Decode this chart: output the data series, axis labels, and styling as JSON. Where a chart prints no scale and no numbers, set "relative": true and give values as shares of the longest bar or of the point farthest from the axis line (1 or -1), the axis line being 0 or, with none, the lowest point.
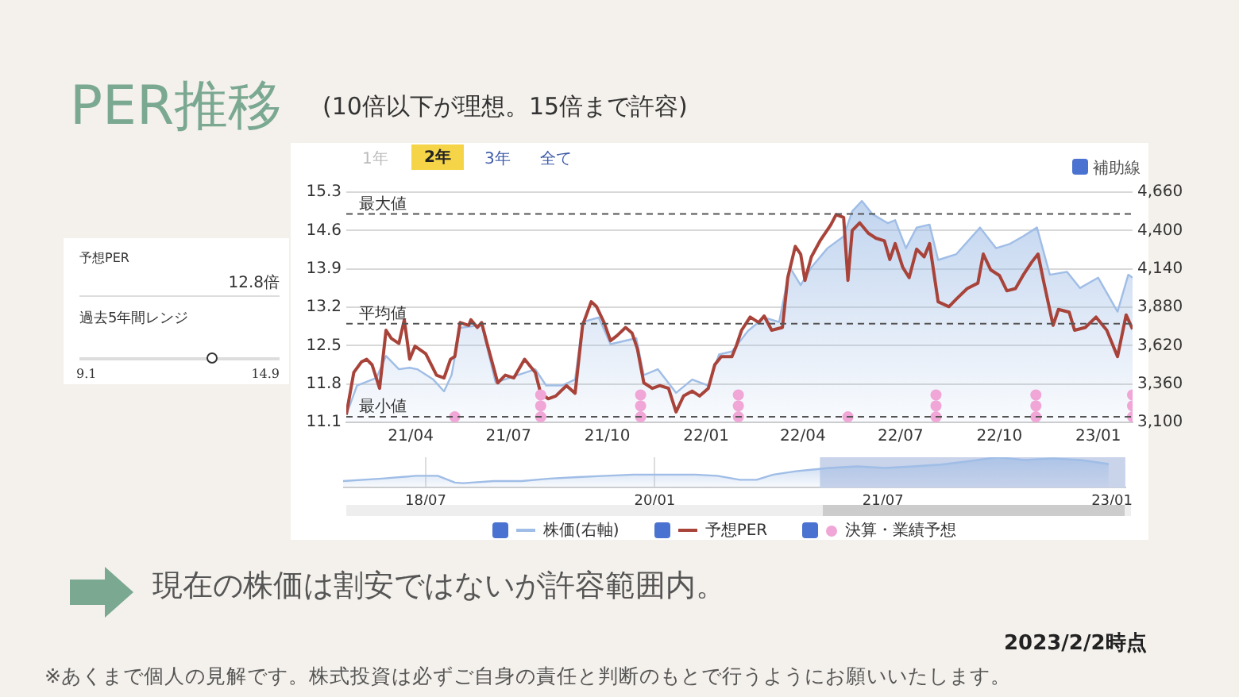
{
  "chart_data": [
    {
      "type": "line",
      "title": "PER推移",
      "subtitle": "(10倍以下が理想。15倍まで許容)",
      "annotations": [
        "1年",
        "2年",
        "3年",
        "全て",
        "補助線",
        "現在の株価は割安ではないが許容範囲内。",
        "2023/2/2時点",
        "※あくまで個人の見解です。株式投資は必ずご自身の責任と判断のもとで行うようにお願いいたします。"
      ],
      "xlim": [
        "2021-01-31",
        "2023-02-02"
      ],
      "xticks": [
        {
          "value": "2021-04-01",
          "label": "21/04"
        },
        {
          "value": "2021-07-01",
          "label": "21/07"
        },
        {
          "value": "2021-10-01",
          "label": "21/10"
        },
        {
          "value": "2022-01-01",
          "label": "22/01"
        },
        {
          "value": "2022-04-01",
          "label": "22/04"
        },
        {
          "value": "2022-07-01",
          "label": "22/07"
        },
        {
          "value": "2022-10-01",
          "label": "22/10"
        },
        {
          "value": "2023-01-01",
          "label": "23/01"
        }
      ],
      "ylim": [
        11.1,
        15.3
      ],
      "yticks": [
        11.1,
        11.8,
        12.5,
        13.2,
        13.9,
        14.6,
        15.3
      ],
      "y2lim": [
        3100,
        4660
      ],
      "y2ticks": [
        {
          "value": 3100,
          "label": "3,100"
        },
        {
          "value": 3360,
          "label": "3,360"
        },
        {
          "value": 3620,
          "label": "3,620"
        },
        {
          "value": 3880,
          "label": "3,880"
        },
        {
          "value": 4140,
          "label": "4,140"
        },
        {
          "value": 4400,
          "label": "4,400"
        },
        {
          "value": 4660,
          "label": "4,660"
        }
      ],
      "grid": "y",
      "legend": "bottom",
      "ref_lines": [
        {
          "axis": "y",
          "value": 14.9,
          "label": "最大値",
          "line_style": "dashed",
          "color": "#555555"
        },
        {
          "axis": "y",
          "value": 12.9,
          "label": "平均値",
          "line_style": "dashed",
          "color": "#555555"
        },
        {
          "axis": "y",
          "value": 11.2,
          "label": "最小値",
          "line_style": "dashed",
          "color": "#555555"
        }
      ],
      "series": [
        {
          "name": "株価(右軸)",
          "type": "area",
          "axis": "y2",
          "color": "#9fbde6",
          "x": [
            "2021-01-31",
            "2021-02-10",
            "2021-02-28",
            "2021-03-09",
            "2021-03-21",
            "2021-03-31",
            "2021-04-07",
            "2021-04-22",
            "2021-05-02",
            "2021-05-09",
            "2021-05-17",
            "2021-06-06",
            "2021-06-19",
            "2021-07-26",
            "2021-08-05",
            "2021-08-20",
            "2021-09-01",
            "2021-09-08",
            "2021-09-23",
            "2021-10-04",
            "2021-10-28",
            "2021-11-04",
            "2021-11-17",
            "2021-12-04",
            "2021-12-19",
            "2022-01-03",
            "2022-01-13",
            "2022-01-25",
            "2022-02-09",
            "2022-02-24",
            "2022-03-10",
            "2022-03-20",
            "2022-03-30",
            "2022-04-09",
            "2022-04-24",
            "2022-05-09",
            "2022-05-17",
            "2022-05-26",
            "2022-06-05",
            "2022-06-19",
            "2022-06-26",
            "2022-07-06",
            "2022-07-16",
            "2022-07-28",
            "2022-08-05",
            "2022-08-22",
            "2022-09-13",
            "2022-09-28",
            "2022-10-11",
            "2022-10-23",
            "2022-11-05",
            "2022-11-17",
            "2022-12-03",
            "2022-12-15",
            "2023-01-01",
            "2023-01-19",
            "2023-01-29",
            "2023-02-02"
          ],
          "values": [
            3150,
            3350,
            3400,
            3550,
            3460,
            3470,
            3460,
            3390,
            3310,
            3420,
            3740,
            3760,
            3370,
            3460,
            3350,
            3350,
            3390,
            3780,
            3810,
            3630,
            3670,
            3420,
            3460,
            3300,
            3390,
            3350,
            3560,
            3580,
            3720,
            3810,
            3780,
            4150,
            4030,
            4150,
            4280,
            4360,
            4530,
            4600,
            4510,
            4450,
            4470,
            4280,
            4420,
            4440,
            4200,
            4240,
            4420,
            4280,
            4310,
            4360,
            4420,
            4100,
            4120,
            4010,
            4080,
            3850,
            4100,
            4080
          ]
        },
        {
          "name": "予想PER",
          "type": "line",
          "color": "#a8433a",
          "x": [
            "2021-01-31",
            "2021-02-07",
            "2021-02-14",
            "2021-02-19",
            "2021-02-24",
            "2021-03-03",
            "2021-03-09",
            "2021-03-14",
            "2021-03-21",
            "2021-03-26",
            "2021-03-31",
            "2021-04-05",
            "2021-04-15",
            "2021-04-25",
            "2021-05-02",
            "2021-05-08",
            "2021-05-12",
            "2021-05-17",
            "2021-05-25",
            "2021-05-27",
            "2021-06-02",
            "2021-06-06",
            "2021-06-11",
            "2021-06-21",
            "2021-06-28",
            "2021-07-06",
            "2021-07-16",
            "2021-07-26",
            "2021-07-31",
            "2021-08-07",
            "2021-08-14",
            "2021-08-24",
            "2021-09-01",
            "2021-09-08",
            "2021-09-16",
            "2021-09-21",
            "2021-09-28",
            "2021-10-04",
            "2021-10-10",
            "2021-10-18",
            "2021-10-24",
            "2021-10-29",
            "2021-11-04",
            "2021-11-12",
            "2021-11-19",
            "2021-11-27",
            "2021-12-04",
            "2021-12-11",
            "2021-12-19",
            "2021-12-26",
            "2022-01-03",
            "2022-01-09",
            "2022-01-15",
            "2022-01-25",
            "2022-01-29",
            "2022-02-03",
            "2022-02-11",
            "2022-02-19",
            "2022-02-24",
            "2022-03-03",
            "2022-03-13",
            "2022-03-18",
            "2022-03-25",
            "2022-03-30",
            "2022-04-03",
            "2022-04-09",
            "2022-04-17",
            "2022-04-27",
            "2022-05-02",
            "2022-05-09",
            "2022-05-13",
            "2022-05-17",
            "2022-05-24",
            "2022-06-01",
            "2022-06-08",
            "2022-06-16",
            "2022-06-21",
            "2022-06-26",
            "2022-07-03",
            "2022-07-09",
            "2022-07-16",
            "2022-07-23",
            "2022-07-28",
            "2022-08-05",
            "2022-08-15",
            "2022-08-22",
            "2022-09-01",
            "2022-09-11",
            "2022-09-16",
            "2022-09-23",
            "2022-10-01",
            "2022-10-08",
            "2022-10-16",
            "2022-10-23",
            "2022-10-31",
            "2022-11-06",
            "2022-11-11",
            "2022-11-20",
            "2022-11-25",
            "2022-12-05",
            "2022-12-10",
            "2022-12-20",
            "2022-12-30",
            "2023-01-09",
            "2023-01-19",
            "2023-01-27",
            "2023-02-02"
          ],
          "values": [
            11.24,
            12.01,
            12.2,
            12.25,
            12.15,
            11.72,
            12.78,
            12.63,
            12.54,
            12.97,
            12.25,
            12.49,
            12.35,
            11.96,
            11.91,
            12.25,
            12.3,
            12.92,
            12.87,
            12.97,
            12.83,
            12.92,
            12.54,
            11.82,
            11.96,
            11.91,
            12.25,
            12.01,
            11.63,
            11.53,
            11.58,
            11.77,
            11.63,
            12.87,
            13.3,
            13.21,
            12.92,
            12.59,
            12.68,
            12.83,
            12.73,
            12.44,
            11.82,
            11.72,
            11.77,
            11.72,
            11.29,
            11.58,
            11.67,
            11.58,
            11.72,
            12.15,
            12.3,
            12.3,
            12.49,
            12.78,
            13.02,
            12.92,
            13.04,
            12.78,
            12.83,
            13.74,
            14.31,
            14.17,
            13.69,
            14.12,
            14.41,
            14.7,
            14.89,
            14.84,
            13.69,
            14.6,
            14.74,
            14.55,
            14.46,
            14.41,
            14.07,
            14.36,
            13.93,
            13.74,
            14.26,
            14.12,
            14.36,
            13.3,
            13.21,
            13.35,
            13.54,
            13.64,
            14.17,
            13.88,
            13.78,
            13.5,
            13.54,
            13.78,
            14.02,
            14.17,
            13.69,
            12.87,
            13.16,
            13.11,
            12.78,
            12.83,
            13.02,
            12.78,
            12.3,
            13.06,
            12.8
          ]
        },
        {
          "name": "決算・業績予想",
          "type": "scatter",
          "color": "#f0a6d6",
          "x": [
            "2021-05-12",
            "2021-07-31",
            "2021-07-31",
            "2021-07-31",
            "2021-11-01",
            "2021-11-01",
            "2021-11-01",
            "2022-01-31",
            "2022-01-31",
            "2022-01-31",
            "2022-05-13",
            "2022-08-03",
            "2022-08-03",
            "2022-08-03",
            "2022-11-04",
            "2022-11-04",
            "2022-11-04",
            "2023-02-02",
            "2023-02-02",
            "2023-02-02"
          ],
          "values": [
            11.2,
            11.2,
            11.4,
            11.6,
            11.2,
            11.4,
            11.6,
            11.2,
            11.4,
            11.6,
            11.2,
            11.2,
            11.4,
            11.6,
            11.2,
            11.4,
            11.6,
            11.2,
            11.4,
            11.6
          ]
        }
      ]
    },
    {
      "type": "other",
      "title": "予想PER",
      "annotations": [
        "12.8倍",
        "過去5年間レンジ",
        "9.1",
        "14.9"
      ]
    },
    {
      "type": "area",
      "relative": true,
      "tick_labels": "x",
      "grid": "x",
      "color": "#9fbde6",
      "xlim": [
        "2017-12-15",
        "2023-02-02"
      ],
      "xticks": [
        {
          "value": "2018-07-01",
          "label": "18/07"
        },
        {
          "value": "2020-01-01",
          "label": "20/01"
        },
        {
          "value": "2021-07-01",
          "label": "21/07"
        },
        {
          "value": "2023-01-01",
          "label": "23/01"
        }
      ],
      "bands": [
        {
          "axis": "x",
          "from": "2021-01-31",
          "to": "2023-02-02",
          "color": "#c9d3ea"
        }
      ],
      "x": [
        "2017-12-15",
        "2018-03-18",
        "2018-06-07",
        "2018-07-30",
        "2018-09-09",
        "2018-09-29",
        "2018-12-11",
        "2019-02-16",
        "2019-04-24",
        "2019-06-30",
        "2019-09-05",
        "2019-11-11",
        "2020-01-17",
        "2020-04-07",
        "2020-05-30",
        "2020-07-23",
        "2020-09-01",
        "2020-10-11",
        "2020-12-04",
        "2021-02-22",
        "2021-04-30",
        "2021-07-06",
        "2021-09-11",
        "2021-11-17",
        "2022-01-23",
        "2022-03-31",
        "2022-06-06",
        "2022-08-12",
        "2022-10-18",
        "2022-12-24"
      ],
      "values": [
        0.22,
        0.3,
        0.39,
        0.39,
        0.17,
        0.15,
        0.22,
        0.22,
        0.3,
        0.35,
        0.39,
        0.43,
        0.43,
        0.43,
        0.39,
        0.26,
        0.26,
        0.43,
        0.54,
        0.65,
        0.7,
        0.65,
        0.7,
        0.76,
        0.87,
        1,
        0.91,
        0.96,
        0.91,
        0.78
      ]
    }
  ]
}
